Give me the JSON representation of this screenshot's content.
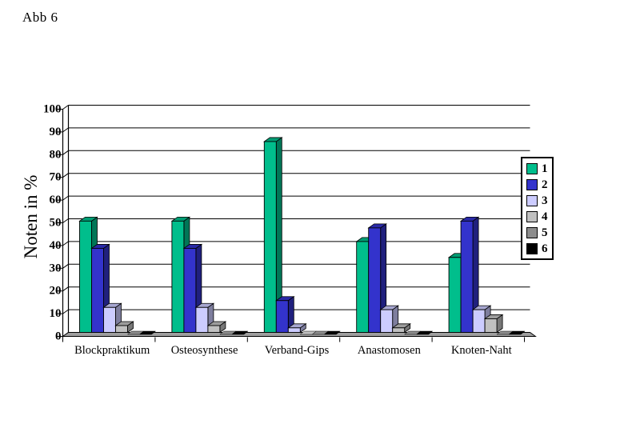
{
  "chart_data": {
    "type": "bar",
    "style": "3d-column",
    "title": "Abb 6",
    "ylabel": "Noten in %",
    "xlabel": "",
    "ylim": [
      0,
      100
    ],
    "ytick_step": 10,
    "yticks": [
      0,
      10,
      20,
      30,
      40,
      50,
      60,
      70,
      80,
      90,
      100
    ],
    "grid": true,
    "legend_position": "right",
    "categories": [
      "Blockpraktikum",
      "Osteosynthese",
      "Verband-Gips",
      "Anastomosen",
      "Knoten-Naht"
    ],
    "series": [
      {
        "name": "1",
        "color": "#00BE8C",
        "values": [
          49,
          49,
          84,
          40,
          33
        ]
      },
      {
        "name": "2",
        "color": "#3333CC",
        "values": [
          37,
          37,
          14,
          46,
          49
        ]
      },
      {
        "name": "3",
        "color": "#CCCCFF",
        "values": [
          11,
          11,
          2,
          10,
          10
        ]
      },
      {
        "name": "4",
        "color": "#C0C0C0",
        "values": [
          3,
          3,
          0,
          2,
          6
        ]
      },
      {
        "name": "5",
        "color": "#8C8C8C",
        "values": [
          0,
          0,
          0,
          0,
          0
        ]
      },
      {
        "name": "6",
        "color": "#000000",
        "values": [
          0,
          0,
          0,
          0,
          0
        ]
      }
    ],
    "colors": {
      "axis": "#000000",
      "floor": "#9E9E9E",
      "background": "#FFFFFF"
    }
  }
}
